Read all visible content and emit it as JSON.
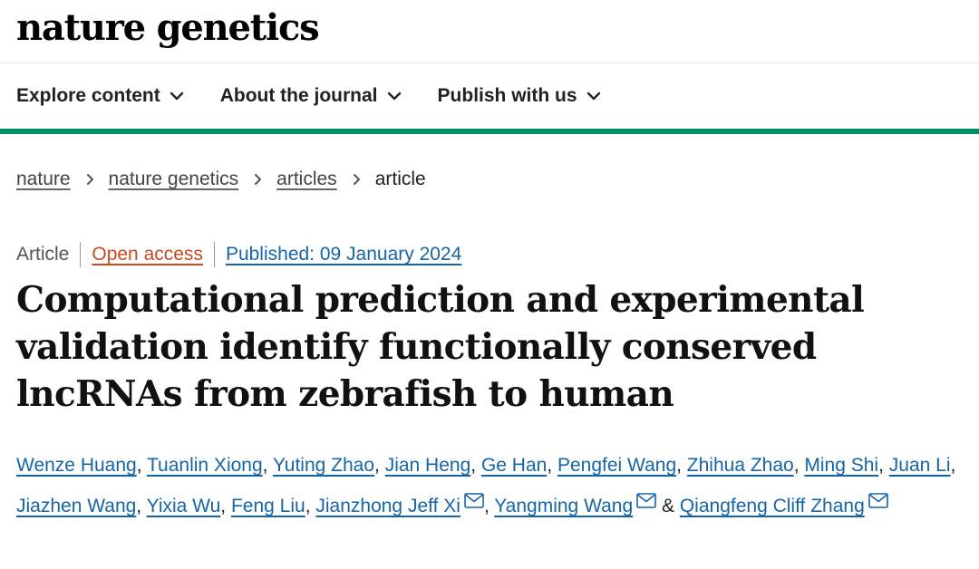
{
  "brand": {
    "logo_text": "nature genetics"
  },
  "nav": {
    "items": [
      {
        "label": "Explore content"
      },
      {
        "label": "About the journal"
      },
      {
        "label": "Publish with us"
      }
    ]
  },
  "breadcrumb": {
    "items": [
      {
        "label": "nature"
      },
      {
        "label": "nature genetics"
      },
      {
        "label": "articles"
      }
    ],
    "current": "article"
  },
  "article": {
    "type": "Article",
    "access": "Open access",
    "published": "Published: 09 January 2024",
    "title": "Computational prediction and experimental validation identify functionally conserved lncRNAs from zebrafish to human"
  },
  "authors": {
    "list": [
      {
        "name": "Wenze Huang"
      },
      {
        "name": "Tuanlin Xiong"
      },
      {
        "name": "Yuting Zhao"
      },
      {
        "name": "Jian Heng"
      },
      {
        "name": "Ge Han"
      },
      {
        "name": "Pengfei Wang"
      },
      {
        "name": "Zhihua Zhao"
      },
      {
        "name": "Ming Shi"
      },
      {
        "name": "Juan Li"
      },
      {
        "name": "Jiazhen Wang"
      },
      {
        "name": "Yixia Wu"
      },
      {
        "name": "Feng Liu"
      },
      {
        "name": "Jianzhong Jeff Xi"
      },
      {
        "name": "Yangming Wang"
      },
      {
        "name": "Qiangfeng Cliff Zhang"
      }
    ],
    "separator": ", ",
    "last_separator": " & "
  },
  "icons": {
    "nav_chevron": "chevron-down-icon",
    "breadcrumb_separator": "chevron-right-icon",
    "corresponding_author": "mail-icon"
  },
  "colors": {
    "accent_bar": "#008f68",
    "link": "#1565a9",
    "open_access": "#c74a1f"
  }
}
